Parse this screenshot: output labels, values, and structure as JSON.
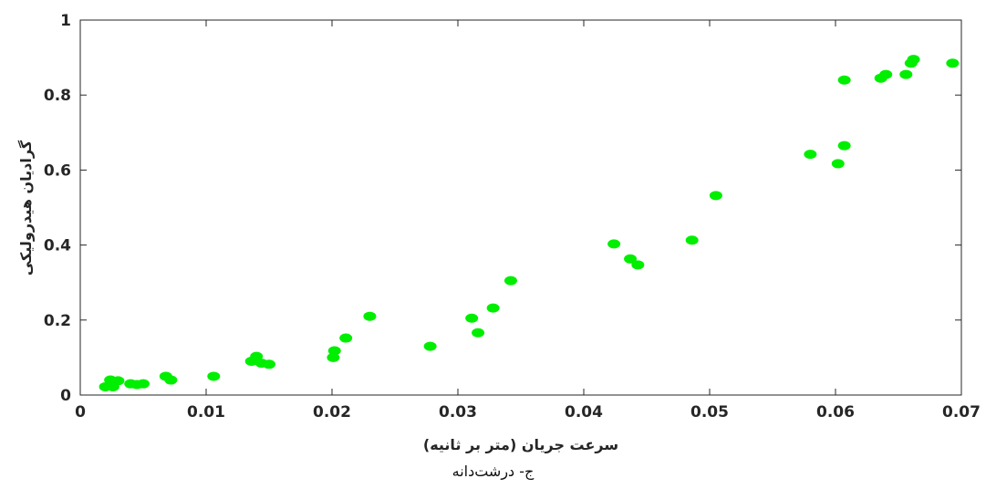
{
  "caption": "ج- درشت‌دانه",
  "chart_data": {
    "type": "scatter",
    "xlabel": "سرعت جریان (متر بر ثانیه)",
    "ylabel": "گرادیان هیدرولیکی",
    "xlim": [
      0,
      0.07
    ],
    "ylim": [
      0,
      1
    ],
    "xticks": [
      "0",
      "0.01",
      "0.02",
      "0.03",
      "0.04",
      "0.05",
      "0.06",
      "0.07"
    ],
    "yticks": [
      "0",
      "0.2",
      "0.4",
      "0.6",
      "0.8",
      "1"
    ],
    "grid": false,
    "marker_color": "#00ee00",
    "series": [
      {
        "points": [
          [
            0.002,
            0.022
          ],
          [
            0.0024,
            0.04
          ],
          [
            0.0026,
            0.022
          ],
          [
            0.003,
            0.038
          ],
          [
            0.004,
            0.03
          ],
          [
            0.0045,
            0.028
          ],
          [
            0.005,
            0.03
          ],
          [
            0.0068,
            0.05
          ],
          [
            0.0072,
            0.04
          ],
          [
            0.0106,
            0.05
          ],
          [
            0.0136,
            0.09
          ],
          [
            0.014,
            0.103
          ],
          [
            0.0144,
            0.085
          ],
          [
            0.015,
            0.082
          ],
          [
            0.0201,
            0.1
          ],
          [
            0.0202,
            0.118
          ],
          [
            0.0211,
            0.152
          ],
          [
            0.023,
            0.21
          ],
          [
            0.0278,
            0.13
          ],
          [
            0.0311,
            0.205
          ],
          [
            0.0316,
            0.166
          ],
          [
            0.0328,
            0.232
          ],
          [
            0.0342,
            0.305
          ],
          [
            0.0424,
            0.403
          ],
          [
            0.0437,
            0.363
          ],
          [
            0.0443,
            0.347
          ],
          [
            0.0486,
            0.413
          ],
          [
            0.0505,
            0.532
          ],
          [
            0.058,
            0.642
          ],
          [
            0.0602,
            0.617
          ],
          [
            0.0607,
            0.665
          ],
          [
            0.0607,
            0.84
          ],
          [
            0.0636,
            0.845
          ],
          [
            0.064,
            0.855
          ],
          [
            0.0656,
            0.855
          ],
          [
            0.066,
            0.885
          ],
          [
            0.0662,
            0.895
          ],
          [
            0.0693,
            0.885
          ]
        ]
      }
    ]
  }
}
